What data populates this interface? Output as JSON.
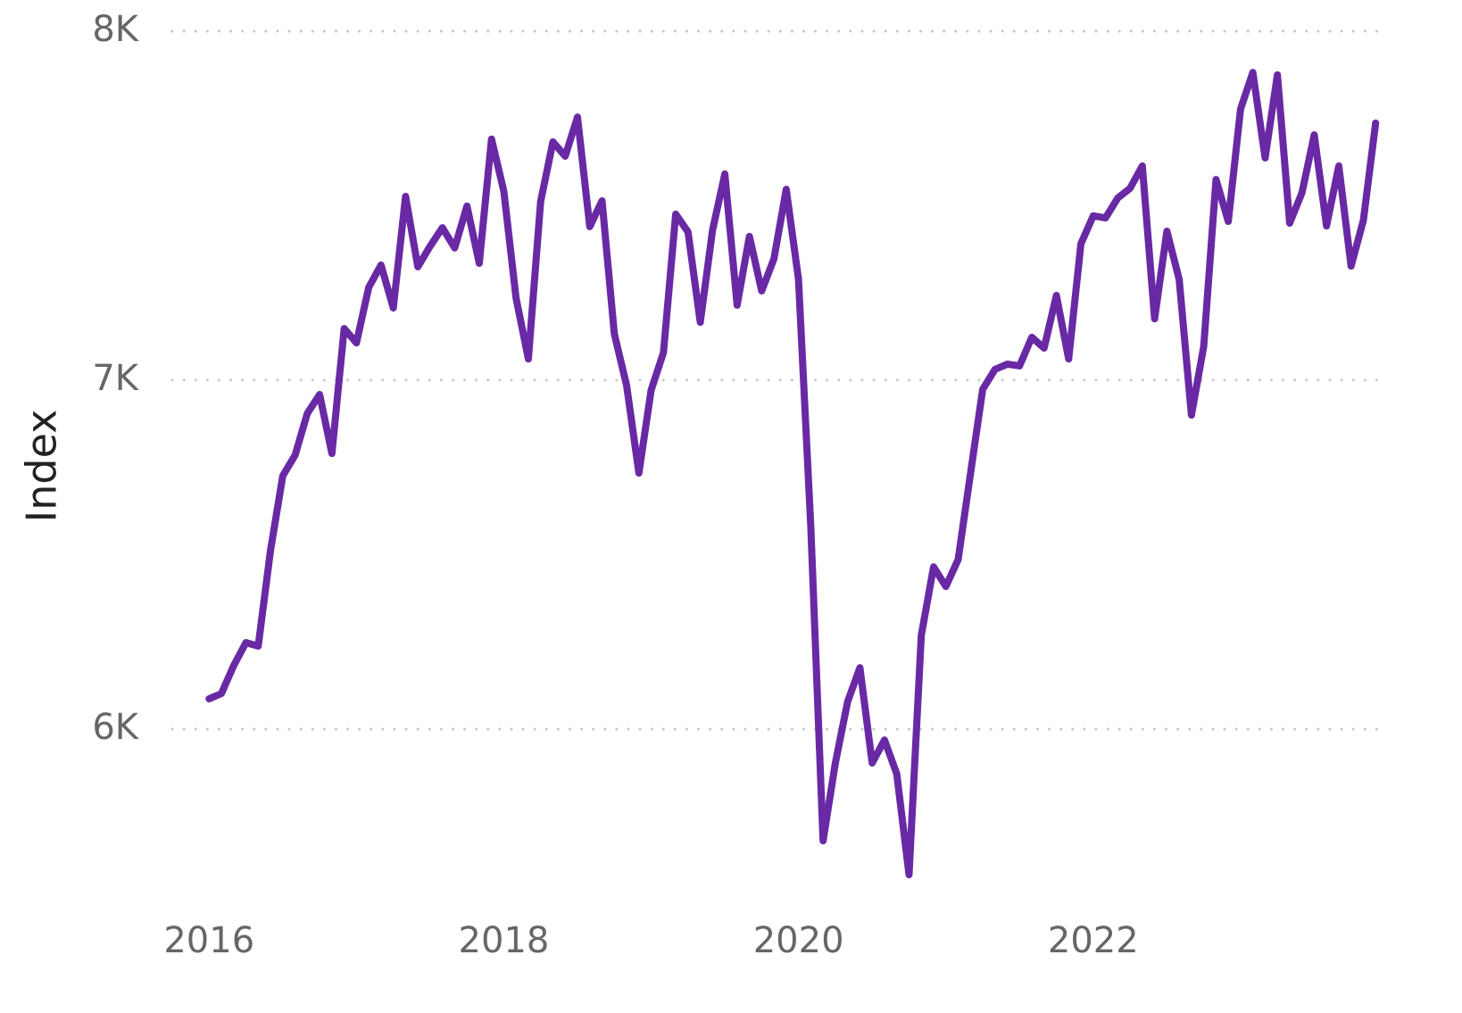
{
  "chart_data": {
    "type": "line",
    "ylabel": "Index",
    "x": [
      "2016-01",
      "2016-02",
      "2016-03",
      "2016-04",
      "2016-05",
      "2016-06",
      "2016-07",
      "2016-08",
      "2016-09",
      "2016-10",
      "2016-11",
      "2016-12",
      "2017-01",
      "2017-02",
      "2017-03",
      "2017-04",
      "2017-05",
      "2017-06",
      "2017-07",
      "2017-08",
      "2017-09",
      "2017-10",
      "2017-11",
      "2017-12",
      "2018-01",
      "2018-02",
      "2018-03",
      "2018-04",
      "2018-05",
      "2018-06",
      "2018-07",
      "2018-08",
      "2018-09",
      "2018-10",
      "2018-11",
      "2018-12",
      "2019-01",
      "2019-02",
      "2019-03",
      "2019-04",
      "2019-05",
      "2019-06",
      "2019-07",
      "2019-08",
      "2019-09",
      "2019-10",
      "2019-11",
      "2019-12",
      "2020-01",
      "2020-02",
      "2020-03",
      "2020-04",
      "2020-05",
      "2020-06",
      "2020-07",
      "2020-08",
      "2020-09",
      "2020-10",
      "2020-11",
      "2020-12",
      "2021-01",
      "2021-02",
      "2021-03",
      "2021-04",
      "2021-05",
      "2021-06",
      "2021-07",
      "2021-08",
      "2021-09",
      "2021-10",
      "2021-11",
      "2021-12",
      "2022-01",
      "2022-02",
      "2022-03",
      "2022-04",
      "2022-05",
      "2022-06",
      "2022-07",
      "2022-08",
      "2022-09",
      "2022-10",
      "2022-11",
      "2022-12",
      "2023-01",
      "2023-02",
      "2023-03",
      "2023-04",
      "2023-05",
      "2023-06",
      "2023-07",
      "2023-08",
      "2023-09",
      "2023-10",
      "2023-11",
      "2023-12"
    ],
    "series": [
      {
        "name": "Index",
        "color": "#6929a5",
        "values": [
          6087,
          6102,
          6182,
          6248,
          6238,
          6512,
          6726,
          6785,
          6905,
          6959,
          6790,
          7148,
          7107,
          7266,
          7330,
          7207,
          7527,
          7325,
          7384,
          7437,
          7379,
          7499,
          7335,
          7691,
          7542,
          7235,
          7061,
          7512,
          7683,
          7642,
          7754,
          7440,
          7514,
          7133,
          6985,
          6734,
          6972,
          7079,
          7476,
          7425,
          7166,
          7430,
          7591,
          7215,
          7412,
          7256,
          7348,
          7547,
          7289,
          6581,
          5680,
          5903,
          6079,
          6176,
          5903,
          5969,
          5872,
          5583,
          6269,
          6465,
          6409,
          6486,
          6731,
          6974,
          7031,
          7046,
          7041,
          7123,
          7092,
          7243,
          7061,
          7391,
          7471,
          7465,
          7522,
          7550,
          7614,
          7176,
          7427,
          7289,
          6900,
          7097,
          7575,
          7455,
          7777,
          7882,
          7637,
          7875,
          7450,
          7537,
          7703,
          7442,
          7614,
          7327,
          7458,
          7737
        ]
      }
    ],
    "xlim": [
      "2015-10",
      "2024-01"
    ],
    "xticks": [
      {
        "value": "2016-01",
        "label": "2016"
      },
      {
        "value": "2018-01",
        "label": "2018"
      },
      {
        "value": "2020-01",
        "label": "2020"
      },
      {
        "value": "2022-01",
        "label": "2022"
      }
    ],
    "ylim": [
      5500,
      8000
    ],
    "yticks": [
      {
        "value": 6000,
        "label": "6K"
      },
      {
        "value": 7000,
        "label": "7K"
      },
      {
        "value": 8000,
        "label": "8K"
      }
    ],
    "grid": true
  }
}
